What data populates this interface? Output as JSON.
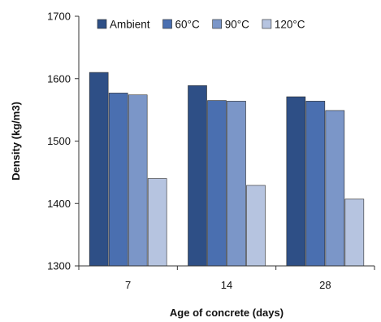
{
  "chart_data": {
    "type": "bar",
    "categories": [
      "7",
      "14",
      "28"
    ],
    "series": [
      {
        "name": "Ambient",
        "values": [
          1610,
          1589,
          1571
        ],
        "color": "#2e4f86"
      },
      {
        "name": "60°C",
        "values": [
          1577,
          1565,
          1564
        ],
        "color": "#4a6fb0"
      },
      {
        "name": "90°C",
        "values": [
          1574,
          1564,
          1549
        ],
        "color": "#7b96c8"
      },
      {
        "name": "120°C",
        "values": [
          1440,
          1429,
          1407
        ],
        "color": "#b6c4e0"
      }
    ],
    "title": "",
    "xlabel": "Age of concrete (days)",
    "ylabel": "Density  (kg/m3)",
    "ylim": [
      1300,
      1700
    ],
    "yticks": [
      1300,
      1400,
      1500,
      1600,
      1700
    ],
    "grid": false,
    "legend_position": "top"
  }
}
